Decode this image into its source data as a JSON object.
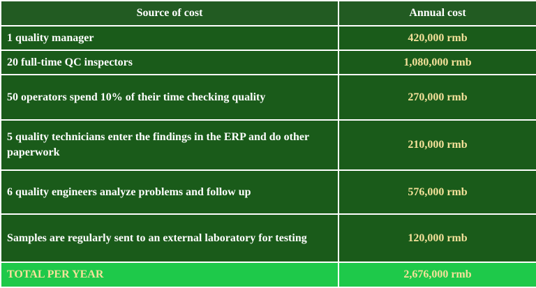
{
  "header": {
    "source": "Source of cost",
    "cost": "Annual cost"
  },
  "rows": [
    {
      "source": "1 quality manager",
      "cost": "420,000 rmb"
    },
    {
      "source": "20 full-time QC inspectors",
      "cost": "1,080,000 rmb"
    },
    {
      "source": "50 operators spend 10% of their time checking quality",
      "cost": "270,000 rmb"
    },
    {
      "source": "5 quality technicians enter the findings in the ERP and do other paperwork",
      "cost": "210,000 rmb"
    },
    {
      "source": "6 quality engineers analyze problems and follow up",
      "cost": "576,000 rmb"
    },
    {
      "source": "Samples are regularly sent to an external laboratory for testing",
      "cost": "120,000 rmb"
    }
  ],
  "total": {
    "source": "TOTAL PER YEAR",
    "cost": "2,676,000 rmb"
  },
  "colors": {
    "header_bg": "#225b22",
    "row_bg": "#1a5b1a",
    "total_bg": "#1ec94a",
    "cost_text": "#f4e19a",
    "border": "#ffffff"
  }
}
